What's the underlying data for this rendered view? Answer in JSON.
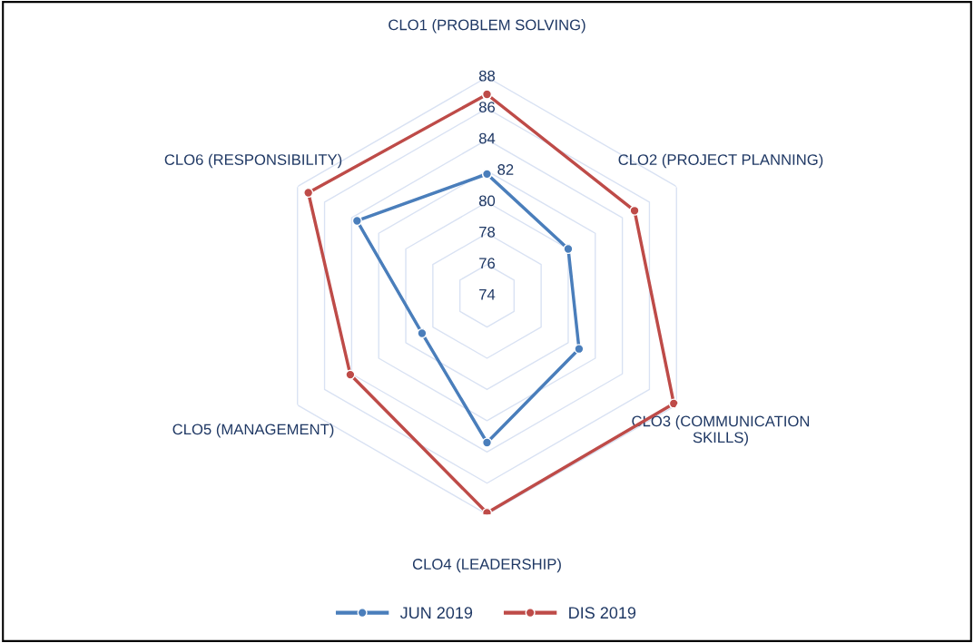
{
  "chart_data": {
    "type": "radar",
    "categories": [
      "CLO1 (PROBLEM SOLVING)",
      "CLO2 (PROJECT PLANNING)",
      "CLO3 (COMMUNICATION\nSKILLS)",
      "CLO4 (LEADERSHIP)",
      "CLO5 (MANAGEMENT)",
      "CLO6 (RESPONSIBILITY)"
    ],
    "series": [
      {
        "name": "JUN 2019",
        "color": "#4a7ebb",
        "values": [
          81.8,
          80.0,
          80.8,
          83.4,
          78.8,
          83.6
        ]
      },
      {
        "name": "DIS 2019",
        "color": "#be4b48",
        "values": [
          86.9,
          84.9,
          87.8,
          87.9,
          84.1,
          87.2
        ]
      }
    ],
    "ylim": [
      74,
      88
    ],
    "yticks": [
      74,
      76,
      78,
      80,
      82,
      84,
      86,
      88
    ],
    "grid": true,
    "legend": "bottom",
    "marker": "circle",
    "line_style": "solid"
  }
}
